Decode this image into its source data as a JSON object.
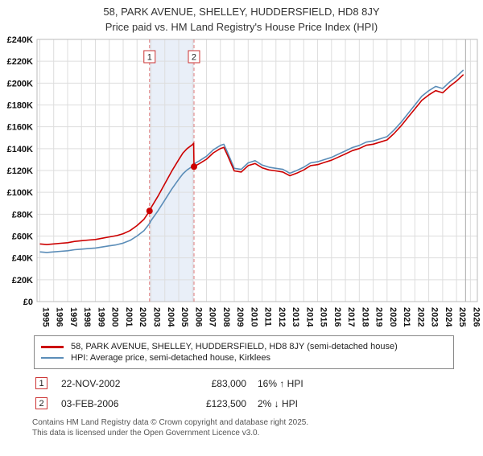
{
  "chart_data": {
    "type": "line",
    "title": "58, PARK AVENUE, SHELLEY, HUDDERSFIELD, HD8 8JY",
    "subtitle": "Price paid vs. HM Land Registry's House Price Index (HPI)",
    "xlim": [
      1994.8,
      2026.5
    ],
    "ylim": [
      0,
      240
    ],
    "ytick_step": 20,
    "ytick_format": "pounds_k",
    "x_years": [
      1995,
      1996,
      1997,
      1998,
      1999,
      2000,
      2001,
      2002,
      2003,
      2004,
      2005,
      2006,
      2007,
      2008,
      2009,
      2010,
      2011,
      2012,
      2013,
      2014,
      2015,
      2016,
      2017,
      2018,
      2019,
      2020,
      2021,
      2022,
      2023,
      2024,
      2025,
      2026
    ],
    "current_x": 2025.65,
    "colors": {
      "accent": "#cc0000",
      "hpi": "#5b8db8",
      "band": "#e9eff8",
      "grid": "#dddddd",
      "sale_line": "#dd7777",
      "border": "#bbbbbb",
      "current_line": "#aaaaaa"
    },
    "series": [
      {
        "name": "58, PARK AVENUE, SHELLEY, HUDDERSFIELD, HD8 8JY (semi-detached house)",
        "color": "#cc0000",
        "points": [
          [
            1995.0,
            52.8
          ],
          [
            1995.5,
            52.2
          ],
          [
            1996.0,
            52.8
          ],
          [
            1996.5,
            53.4
          ],
          [
            1997.0,
            53.9
          ],
          [
            1997.5,
            55.1
          ],
          [
            1998.0,
            55.7
          ],
          [
            1998.5,
            56.3
          ],
          [
            1999.0,
            56.8
          ],
          [
            1999.5,
            58.0
          ],
          [
            2000.0,
            59.2
          ],
          [
            2000.5,
            60.3
          ],
          [
            2001.0,
            62.1
          ],
          [
            2001.5,
            65.0
          ],
          [
            2002.0,
            69.6
          ],
          [
            2002.5,
            75.4
          ],
          [
            2002.9,
            83.0
          ],
          [
            2003.0,
            85.8
          ],
          [
            2003.5,
            96.3
          ],
          [
            2004.0,
            107.9
          ],
          [
            2004.5,
            119.5
          ],
          [
            2005.0,
            129.9
          ],
          [
            2005.3,
            136.0
          ],
          [
            2005.6,
            140.0
          ],
          [
            2006.0,
            143.8
          ],
          [
            2006.08,
            145.0
          ],
          [
            2006.1,
            123.5
          ],
          [
            2006.5,
            126.4
          ],
          [
            2007.0,
            130.3
          ],
          [
            2007.5,
            136.2
          ],
          [
            2008.0,
            140.1
          ],
          [
            2008.25,
            141.1
          ],
          [
            2008.5,
            134.3
          ],
          [
            2009.0,
            119.6
          ],
          [
            2009.5,
            118.6
          ],
          [
            2010.0,
            124.5
          ],
          [
            2010.5,
            126.4
          ],
          [
            2011.0,
            122.5
          ],
          [
            2011.5,
            120.5
          ],
          [
            2012.0,
            119.6
          ],
          [
            2012.5,
            118.6
          ],
          [
            2013.0,
            115.2
          ],
          [
            2013.5,
            117.6
          ],
          [
            2014.0,
            120.5
          ],
          [
            2014.5,
            124.5
          ],
          [
            2015.0,
            125.4
          ],
          [
            2015.5,
            127.4
          ],
          [
            2016.0,
            129.4
          ],
          [
            2016.5,
            132.3
          ],
          [
            2017.0,
            135.2
          ],
          [
            2017.5,
            138.2
          ],
          [
            2018.0,
            140.1
          ],
          [
            2018.5,
            143.1
          ],
          [
            2019.0,
            144.1
          ],
          [
            2019.5,
            146.0
          ],
          [
            2020.0,
            148.0
          ],
          [
            2020.5,
            153.9
          ],
          [
            2021.0,
            160.7
          ],
          [
            2021.5,
            168.6
          ],
          [
            2022.0,
            176.4
          ],
          [
            2022.5,
            184.2
          ],
          [
            2023.0,
            189.1
          ],
          [
            2023.5,
            193.1
          ],
          [
            2024.0,
            191.1
          ],
          [
            2024.5,
            197.0
          ],
          [
            2025.0,
            201.9
          ],
          [
            2025.5,
            207.8
          ]
        ]
      },
      {
        "name": "HPI: Average price, semi-detached house, Kirklees",
        "color": "#5b8db8",
        "points": [
          [
            1995.0,
            45.5
          ],
          [
            1995.5,
            45.0
          ],
          [
            1996.0,
            45.5
          ],
          [
            1996.5,
            46.0
          ],
          [
            1997.0,
            46.5
          ],
          [
            1997.5,
            47.5
          ],
          [
            1998.0,
            48.0
          ],
          [
            1998.5,
            48.5
          ],
          [
            1999.0,
            49.0
          ],
          [
            1999.5,
            50.0
          ],
          [
            2000.0,
            51.0
          ],
          [
            2000.5,
            52.0
          ],
          [
            2001.0,
            53.5
          ],
          [
            2001.5,
            56.0
          ],
          [
            2002.0,
            60.0
          ],
          [
            2002.5,
            65.0
          ],
          [
            2002.9,
            71.5
          ],
          [
            2003.0,
            74.0
          ],
          [
            2003.5,
            83.0
          ],
          [
            2004.0,
            93.0
          ],
          [
            2004.5,
            103.0
          ],
          [
            2005.0,
            112.0
          ],
          [
            2005.3,
            117.0
          ],
          [
            2005.6,
            120.5
          ],
          [
            2006.0,
            124.0
          ],
          [
            2006.1,
            126.0
          ],
          [
            2006.5,
            129.0
          ],
          [
            2007.0,
            133.0
          ],
          [
            2007.5,
            139.0
          ],
          [
            2008.0,
            143.0
          ],
          [
            2008.25,
            144.0
          ],
          [
            2008.5,
            137.0
          ],
          [
            2009.0,
            122.0
          ],
          [
            2009.5,
            121.0
          ],
          [
            2010.0,
            127.0
          ],
          [
            2010.5,
            129.0
          ],
          [
            2011.0,
            125.0
          ],
          [
            2011.5,
            123.0
          ],
          [
            2012.0,
            122.0
          ],
          [
            2012.5,
            121.0
          ],
          [
            2013.0,
            117.5
          ],
          [
            2013.5,
            120.0
          ],
          [
            2014.0,
            123.0
          ],
          [
            2014.5,
            127.0
          ],
          [
            2015.0,
            128.0
          ],
          [
            2015.5,
            130.0
          ],
          [
            2016.0,
            132.0
          ],
          [
            2016.5,
            135.0
          ],
          [
            2017.0,
            138.0
          ],
          [
            2017.5,
            141.0
          ],
          [
            2018.0,
            143.0
          ],
          [
            2018.5,
            146.0
          ],
          [
            2019.0,
            147.0
          ],
          [
            2019.5,
            149.0
          ],
          [
            2020.0,
            151.0
          ],
          [
            2020.5,
            157.0
          ],
          [
            2021.0,
            164.0
          ],
          [
            2021.5,
            172.0
          ],
          [
            2022.0,
            180.0
          ],
          [
            2022.5,
            188.0
          ],
          [
            2023.0,
            193.0
          ],
          [
            2023.5,
            197.0
          ],
          [
            2024.0,
            195.0
          ],
          [
            2024.5,
            201.0
          ],
          [
            2025.0,
            206.0
          ],
          [
            2025.5,
            212.0
          ]
        ]
      }
    ],
    "sales": [
      {
        "num": 1,
        "x": 2002.9,
        "y": 83.0,
        "date": "22-NOV-2002",
        "price": "£83,000",
        "hpi_delta": "16% ↑ HPI"
      },
      {
        "num": 2,
        "x": 2006.1,
        "y": 123.5,
        "date": "03-FEB-2006",
        "price": "£123,500",
        "hpi_delta": "2% ↓ HPI"
      }
    ]
  },
  "footer": {
    "line1": "Contains HM Land Registry data © Crown copyright and database right 2025.",
    "line2": "This data is licensed under the Open Government Licence v3.0."
  }
}
